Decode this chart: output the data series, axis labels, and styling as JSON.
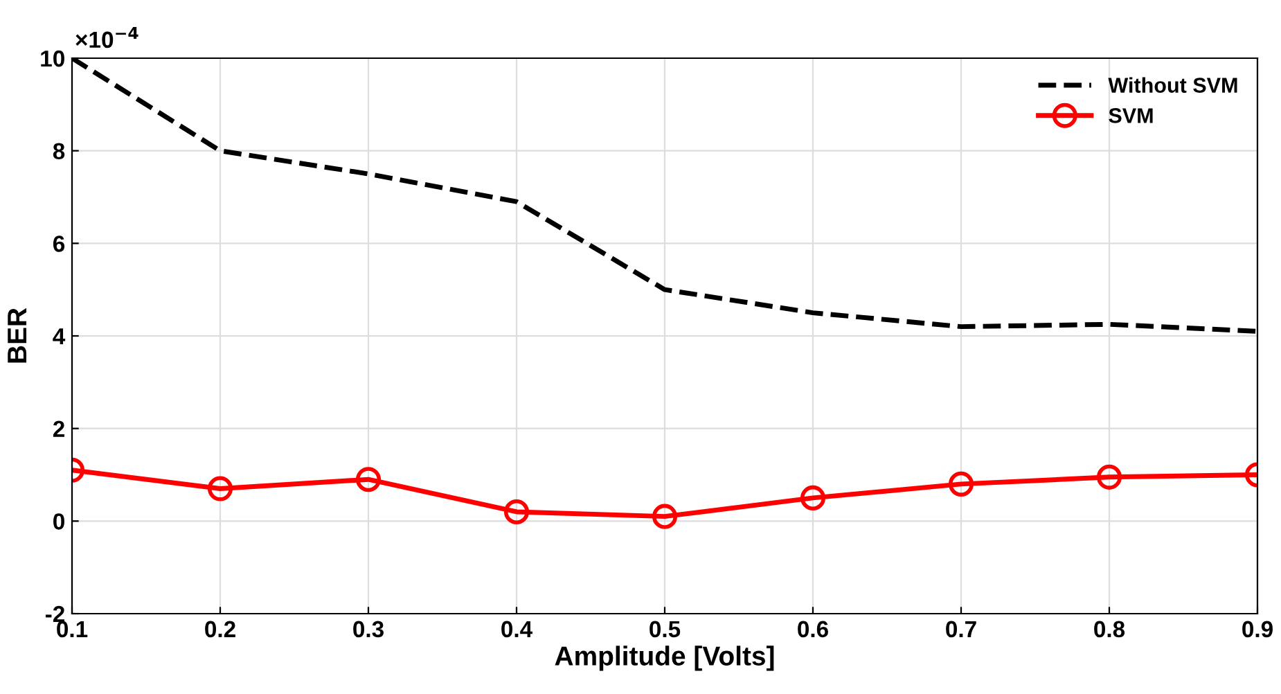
{
  "chart_data": {
    "type": "line",
    "xlabel": "Amplitude [Volts]",
    "ylabel": "BER",
    "annotations": [
      "×10$^{−4}$"
    ],
    "x": [
      0.1,
      0.2,
      0.3,
      0.4,
      0.5,
      0.6,
      0.7,
      0.8,
      0.9
    ],
    "series": [
      {
        "name": "Without SVM",
        "color": "#000000",
        "line_style": "dashed",
        "marker": "none",
        "values": [
          10,
          8,
          7.5,
          6.9,
          5.0,
          4.5,
          4.2,
          4.25,
          4.1
        ]
      },
      {
        "name": "SVM",
        "color": "#ff0000",
        "line_style": "solid",
        "marker": "circle",
        "values": [
          1.1,
          0.7,
          0.9,
          0.2,
          0.1,
          0.5,
          0.8,
          0.95,
          1.0
        ]
      }
    ],
    "xlim": [
      0.1,
      0.9
    ],
    "xticks": [
      0.1,
      0.2,
      0.3,
      0.4,
      0.5,
      0.6,
      0.7,
      0.8,
      0.9
    ],
    "ylim": [
      -2,
      10
    ],
    "yticks": [
      -2,
      0,
      2,
      4,
      6,
      8,
      10
    ],
    "grid": true,
    "legend": "top right"
  }
}
